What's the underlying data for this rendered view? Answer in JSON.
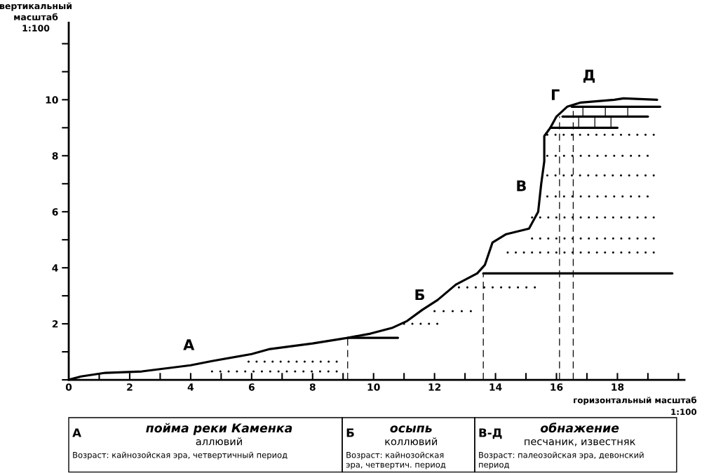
{
  "chart_data": {
    "type": "line",
    "xlabel": "горизонтальный масштаб\n1:100",
    "ylabel": "вертикальный\nмасштаб\n1:100",
    "xlim": [
      0,
      20.2
    ],
    "ylim": [
      0,
      12.75
    ],
    "xticks": [
      0,
      {
        "value": 1,
        "label": null
      },
      2,
      {
        "value": 3,
        "label": null
      },
      4,
      {
        "value": 5,
        "label": null
      },
      6,
      {
        "value": 7,
        "label": null
      },
      8,
      {
        "value": 9,
        "label": null
      },
      10,
      {
        "value": 11,
        "label": null
      },
      12,
      {
        "value": 13,
        "label": null
      },
      14,
      {
        "value": 15,
        "label": null
      },
      16,
      {
        "value": 17,
        "label": null
      },
      18,
      {
        "value": 19,
        "label": null
      },
      {
        "value": 20,
        "label": null
      }
    ],
    "yticks": [
      {
        "value": 0,
        "label": null
      },
      {
        "value": 1,
        "label": null
      },
      2,
      {
        "value": 3,
        "label": null
      },
      4,
      {
        "value": 5,
        "label": null
      },
      6,
      {
        "value": 7,
        "label": null
      },
      8,
      {
        "value": 9,
        "label": null
      },
      10,
      {
        "value": 11,
        "label": null
      },
      {
        "value": 12,
        "label": null
      }
    ],
    "grid": false,
    "marker": "none",
    "series": [
      {
        "color": "#000000",
        "line_style": "solid",
        "x": [
          0,
          0.4,
          1.2,
          2.4,
          4,
          4.7,
          6,
          6.6,
          8,
          9.15,
          9.9,
          10.6,
          11.1,
          11.6,
          12.1,
          12.7,
          13.4,
          13.65,
          13.9,
          14.35,
          15.1,
          15.4,
          15.5,
          15.6,
          15.6,
          15.8,
          16.0,
          16.35,
          16.8,
          17.9,
          18.2,
          19.3
        ],
        "values": [
          0,
          0.12,
          0.25,
          0.3,
          0.52,
          0.67,
          0.92,
          1.1,
          1.3,
          1.5,
          1.65,
          1.85,
          2.1,
          2.5,
          2.85,
          3.4,
          3.8,
          4.1,
          4.9,
          5.2,
          5.4,
          6.0,
          7.0,
          7.8,
          8.7,
          9.0,
          9.4,
          9.75,
          9.9,
          10.0,
          10.05,
          10.0
        ]
      },
      {
        "color": "#000000",
        "line_style": "solid",
        "x": [
          9.15,
          10.8
        ],
        "values": [
          1.5,
          1.5
        ]
      },
      {
        "color": "#000000",
        "line_style": "solid",
        "x": [
          13.6,
          19.8
        ],
        "values": [
          3.8,
          3.8
        ]
      },
      {
        "color": "#000000",
        "line_style": "solid",
        "x": [
          15.8,
          18.0
        ],
        "values": [
          9.0,
          9.0
        ]
      },
      {
        "color": "#000000",
        "line_style": "solid",
        "x": [
          16.5,
          19.4
        ],
        "values": [
          9.75,
          9.75
        ]
      },
      {
        "color": "#000000",
        "line_style": "solid",
        "x": [
          16.2,
          19.0
        ],
        "values": [
          9.4,
          9.4
        ]
      },
      {
        "color": "#000000",
        "line_style": "dashed",
        "x": [
          9.15,
          9.15
        ],
        "values": [
          0,
          1.5
        ]
      },
      {
        "color": "#000000",
        "line_style": "dashed",
        "x": [
          13.6,
          13.6
        ],
        "values": [
          0,
          3.8
        ]
      },
      {
        "color": "#000000",
        "line_style": "dashed",
        "x": [
          16.1,
          16.1
        ],
        "values": [
          0,
          9.4
        ]
      },
      {
        "color": "#000000",
        "line_style": "dashed",
        "x": [
          16.55,
          16.55
        ],
        "values": [
          0,
          9.75
        ]
      },
      {
        "color": "#000000",
        "line_style": "dotted",
        "x": [
          4.7,
          8.8
        ],
        "values": [
          0.3,
          0.3
        ]
      },
      {
        "color": "#000000",
        "line_style": "dotted",
        "x": [
          5.9,
          8.8
        ],
        "values": [
          0.65,
          0.65
        ]
      },
      {
        "color": "#000000",
        "line_style": "dotted",
        "x": [
          11.0,
          12.1
        ],
        "values": [
          2.0,
          2.0
        ]
      },
      {
        "color": "#000000",
        "line_style": "dotted",
        "x": [
          12.0,
          13.2
        ],
        "values": [
          2.45,
          2.45
        ]
      },
      {
        "color": "#000000",
        "line_style": "dotted",
        "x": [
          12.8,
          15.3
        ],
        "values": [
          3.3,
          3.3
        ]
      },
      {
        "color": "#000000",
        "line_style": "dotted",
        "x": [
          14.4,
          19.2
        ],
        "values": [
          4.55,
          4.55
        ]
      },
      {
        "color": "#000000",
        "line_style": "dotted",
        "x": [
          15.2,
          19.2
        ],
        "values": [
          5.05,
          5.05
        ]
      },
      {
        "color": "#000000",
        "line_style": "dotted",
        "x": [
          15.2,
          19.2
        ],
        "values": [
          5.8,
          5.8
        ]
      },
      {
        "color": "#000000",
        "line_style": "dotted",
        "x": [
          15.7,
          19.0
        ],
        "values": [
          6.55,
          6.55
        ]
      },
      {
        "color": "#000000",
        "line_style": "dotted",
        "x": [
          15.7,
          19.2
        ],
        "values": [
          7.3,
          7.3
        ]
      },
      {
        "color": "#000000",
        "line_style": "dotted",
        "x": [
          15.7,
          19.0
        ],
        "values": [
          8.0,
          8.0
        ]
      },
      {
        "color": "#000000",
        "line_style": "dotted",
        "x": [
          15.7,
          19.2
        ],
        "values": [
          8.75,
          8.75
        ]
      }
    ],
    "annotations": [
      "А",
      "Б",
      "В",
      "Г",
      "Д",
      "А",
      "пойма реки Каменка",
      "аллювий",
      "Возраст: кайнозойская эра, четвертичный период",
      "Б",
      "осыпь",
      "коллювий",
      "Возраст: кайнозойская\nэра, четвертич. период",
      "В-Д",
      "обнажение",
      "песчаник, известняк",
      "Возраст: палеозойская эра, девонский\nпериод"
    ]
  }
}
